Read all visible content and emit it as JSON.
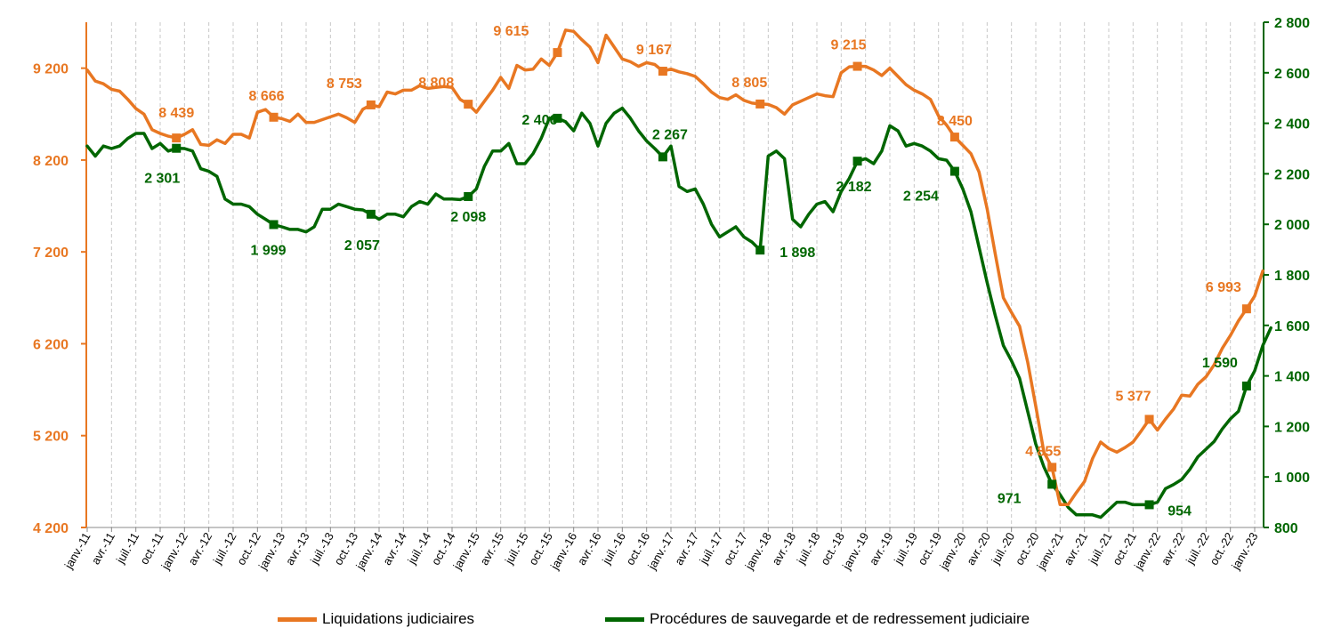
{
  "chart_data": {
    "type": "line",
    "title": "",
    "x_tick_labels": [
      "janv.-11",
      "avr.-11",
      "juil.-11",
      "oct.-11",
      "janv.-12",
      "avr.-12",
      "juil.-12",
      "oct.-12",
      "janv.-13",
      "avr.-13",
      "juil.-13",
      "oct.-13",
      "janv.-14",
      "avr.-14",
      "juil.-14",
      "oct.-14",
      "janv.-15",
      "avr.-15",
      "juil.-15",
      "oct.-15",
      "janv.-16",
      "avr.-16",
      "juil.-16",
      "oct.-16",
      "janv.-17",
      "avr.-17",
      "juil.-17",
      "oct.-17",
      "janv.-18",
      "avr.-18",
      "juil.-18",
      "oct.-18",
      "janv.-19",
      "avr.-19",
      "juil.-19",
      "oct.-19",
      "janv.-20",
      "avr.-20",
      "juil.-20",
      "oct.-20",
      "janv.-21",
      "avr.-21",
      "juil.-21",
      "oct.-21",
      "janv.-22",
      "avr.-22",
      "juil.-22",
      "oct.-22",
      "janv.-23"
    ],
    "y_left": {
      "min": 4200,
      "max": 9700,
      "ticks": [
        "4 200",
        "5 200",
        "6 200",
        "7 200",
        "8 200",
        "9 200"
      ],
      "tick_values": [
        4200,
        5200,
        6200,
        7200,
        8200,
        9200
      ],
      "color": "#E87722"
    },
    "y_right": {
      "min": 800,
      "max": 2800,
      "ticks": [
        "800",
        "1 000",
        "1 200",
        "1 400",
        "1 600",
        "1 800",
        "2 000",
        "2 200",
        "2 400",
        "2 600",
        "2 800"
      ],
      "tick_values": [
        800,
        1000,
        1200,
        1400,
        1600,
        1800,
        2000,
        2200,
        2400,
        2600,
        2800
      ],
      "color": "#006600"
    },
    "grid": "vertical dashed",
    "legend_position": "bottom",
    "series": [
      {
        "name": "Liquidations judiciaires",
        "axis": "left",
        "color": "#E87722",
        "start_month": "janv.-11",
        "values": [
          9180,
          9060,
          9030,
          8970,
          8950,
          8860,
          8760,
          8700,
          8530,
          8490,
          8460,
          8440,
          8480,
          8530,
          8370,
          8360,
          8420,
          8380,
          8480,
          8480,
          8440,
          8720,
          8750,
          8666,
          8650,
          8620,
          8700,
          8610,
          8610,
          8640,
          8670,
          8700,
          8660,
          8610,
          8753,
          8800,
          8780,
          8940,
          8920,
          8960,
          8960,
          9010,
          8980,
          8990,
          9000,
          8990,
          8860,
          8808,
          8720,
          8840,
          8960,
          9100,
          8980,
          9230,
          9180,
          9190,
          9300,
          9230,
          9370,
          9615,
          9600,
          9510,
          9430,
          9260,
          9560,
          9430,
          9300,
          9270,
          9220,
          9260,
          9240,
          9167,
          9190,
          9160,
          9140,
          9110,
          9030,
          8940,
          8880,
          8860,
          8910,
          8850,
          8820,
          8810,
          8805,
          8770,
          8700,
          8800,
          8840,
          8880,
          8920,
          8900,
          8890,
          9150,
          9215,
          9220,
          9220,
          9180,
          9120,
          9200,
          9110,
          9020,
          8960,
          8920,
          8860,
          8680,
          8580,
          8450,
          8360,
          8270,
          8070,
          7670,
          7180,
          6700,
          6540,
          6390,
          6000,
          5520,
          5020,
          4855,
          4450,
          4450,
          4580,
          4700,
          4950,
          5130,
          5060,
          5020,
          5070,
          5130,
          5250,
          5377,
          5260,
          5380,
          5490,
          5640,
          5630,
          5760,
          5840,
          5970,
          6150,
          6290,
          6450,
          6580,
          6720,
          6993
        ]
      },
      {
        "name": "Procédures de sauvegarde et de redressement judiciaire",
        "axis": "right",
        "color": "#006600",
        "start_month": "janv.-11",
        "values": [
          2310,
          2270,
          2310,
          2300,
          2310,
          2340,
          2360,
          2360,
          2300,
          2320,
          2290,
          2301,
          2300,
          2290,
          2220,
          2210,
          2190,
          2100,
          2080,
          2080,
          2070,
          2040,
          2020,
          1999,
          1990,
          1980,
          1980,
          1970,
          1990,
          2060,
          2060,
          2080,
          2070,
          2060,
          2057,
          2040,
          2020,
          2040,
          2040,
          2030,
          2070,
          2090,
          2080,
          2120,
          2100,
          2100,
          2098,
          2110,
          2140,
          2230,
          2290,
          2290,
          2320,
          2240,
          2240,
          2280,
          2340,
          2420,
          2420,
          2406,
          2370,
          2440,
          2400,
          2310,
          2400,
          2440,
          2460,
          2420,
          2370,
          2330,
          2300,
          2267,
          2310,
          2150,
          2130,
          2140,
          2080,
          2000,
          1950,
          1970,
          1990,
          1950,
          1930,
          1898,
          2270,
          2290,
          2260,
          2020,
          1990,
          2040,
          2080,
          2090,
          2050,
          2130,
          2182,
          2250,
          2260,
          2240,
          2290,
          2390,
          2370,
          2310,
          2320,
          2310,
          2290,
          2260,
          2254,
          2210,
          2140,
          2050,
          1910,
          1770,
          1640,
          1520,
          1460,
          1390,
          1260,
          1130,
          1040,
          971,
          930,
          880,
          850,
          850,
          850,
          840,
          870,
          900,
          900,
          890,
          890,
          890,
          900,
          954,
          970,
          990,
          1030,
          1080,
          1110,
          1140,
          1190,
          1230,
          1260,
          1360,
          1420,
          1520,
          1590
        ]
      }
    ],
    "annotations": {
      "liquidations": [
        {
          "month": "janv.-12",
          "label": "8 439"
        },
        {
          "month": "janv.-13",
          "label": "8 666"
        },
        {
          "month": "janv.-14",
          "label": "8 753"
        },
        {
          "month": "janv.-15",
          "label": "8 808"
        },
        {
          "month": "janv.-16",
          "label": "9 615"
        },
        {
          "month": "janv.-17",
          "label": "9 167"
        },
        {
          "month": "janv.-18",
          "label": "8 805"
        },
        {
          "month": "janv.-19",
          "label": "9 215"
        },
        {
          "month": "janv.-20",
          "label": "8 450"
        },
        {
          "month": "janv.-21",
          "label": "4 855"
        },
        {
          "month": "janv.-22",
          "label": "5 377"
        },
        {
          "month": "janv.-23",
          "label": "6 993"
        }
      ],
      "sauvegarde": [
        {
          "month": "janv.-12",
          "label": "2 301"
        },
        {
          "month": "janv.-13",
          "label": "1 999"
        },
        {
          "month": "janv.-14",
          "label": "2 057"
        },
        {
          "month": "janv.-15",
          "label": "2 098"
        },
        {
          "month": "janv.-16",
          "label": "2 406"
        },
        {
          "month": "janv.-17",
          "label": "2 267"
        },
        {
          "month": "janv.-18",
          "label": "1 898"
        },
        {
          "month": "janv.-19",
          "label": "2 182"
        },
        {
          "month": "janv.-20",
          "label": "2 254"
        },
        {
          "month": "janv.-21",
          "label": "971"
        },
        {
          "month": "janv.-22",
          "label": "954"
        },
        {
          "month": "janv.-23",
          "label": "1 590"
        }
      ]
    }
  },
  "legend": {
    "liquidations_label": "Liquidations judiciaires",
    "sauvegarde_label": "Procédures de sauvegarde et de redressement judiciaire"
  }
}
